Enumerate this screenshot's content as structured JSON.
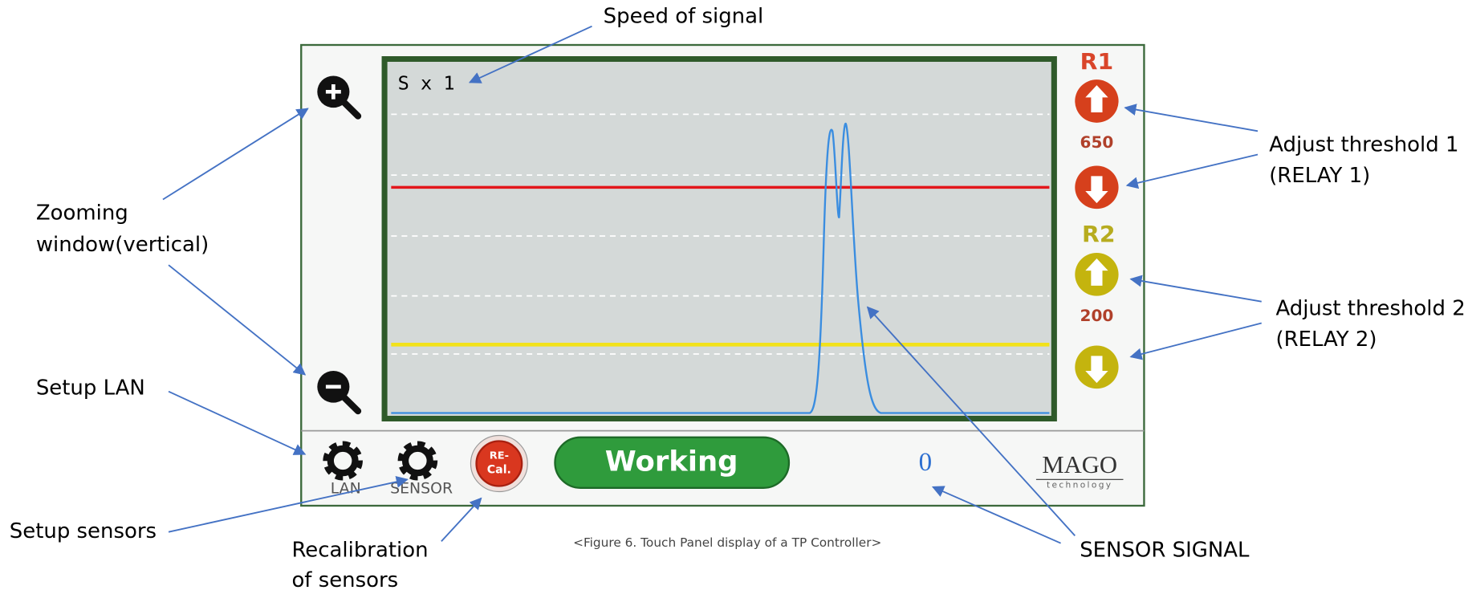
{
  "annotations": {
    "speed": "Speed of signal",
    "zoom": [
      "Zooming",
      "window(vertical)"
    ],
    "setup_lan": "Setup LAN",
    "setup_sensors": "Setup sensors",
    "recalibration": [
      "Recalibration",
      "of sensors"
    ],
    "sensor_signal": "SENSOR SIGNAL",
    "threshold1": [
      "Adjust threshold 1",
      "(RELAY 1)"
    ],
    "threshold2": [
      "Adjust threshold 2",
      "(RELAY 2)"
    ]
  },
  "panel": {
    "speed_label": "S x 1",
    "relay1": {
      "label": "R1",
      "value": "650"
    },
    "relay2": {
      "label": "R2",
      "value": "200"
    },
    "buttons": {
      "lan": "LAN",
      "sensor": "SENSOR",
      "recal": [
        "RE-",
        "Cal."
      ]
    },
    "status": "Working",
    "signal_value": "0",
    "logo": {
      "name": "MAGO",
      "sub": "technology"
    }
  },
  "caption": "<Figure 6. Touch Panel display of a  TP Controller>"
}
